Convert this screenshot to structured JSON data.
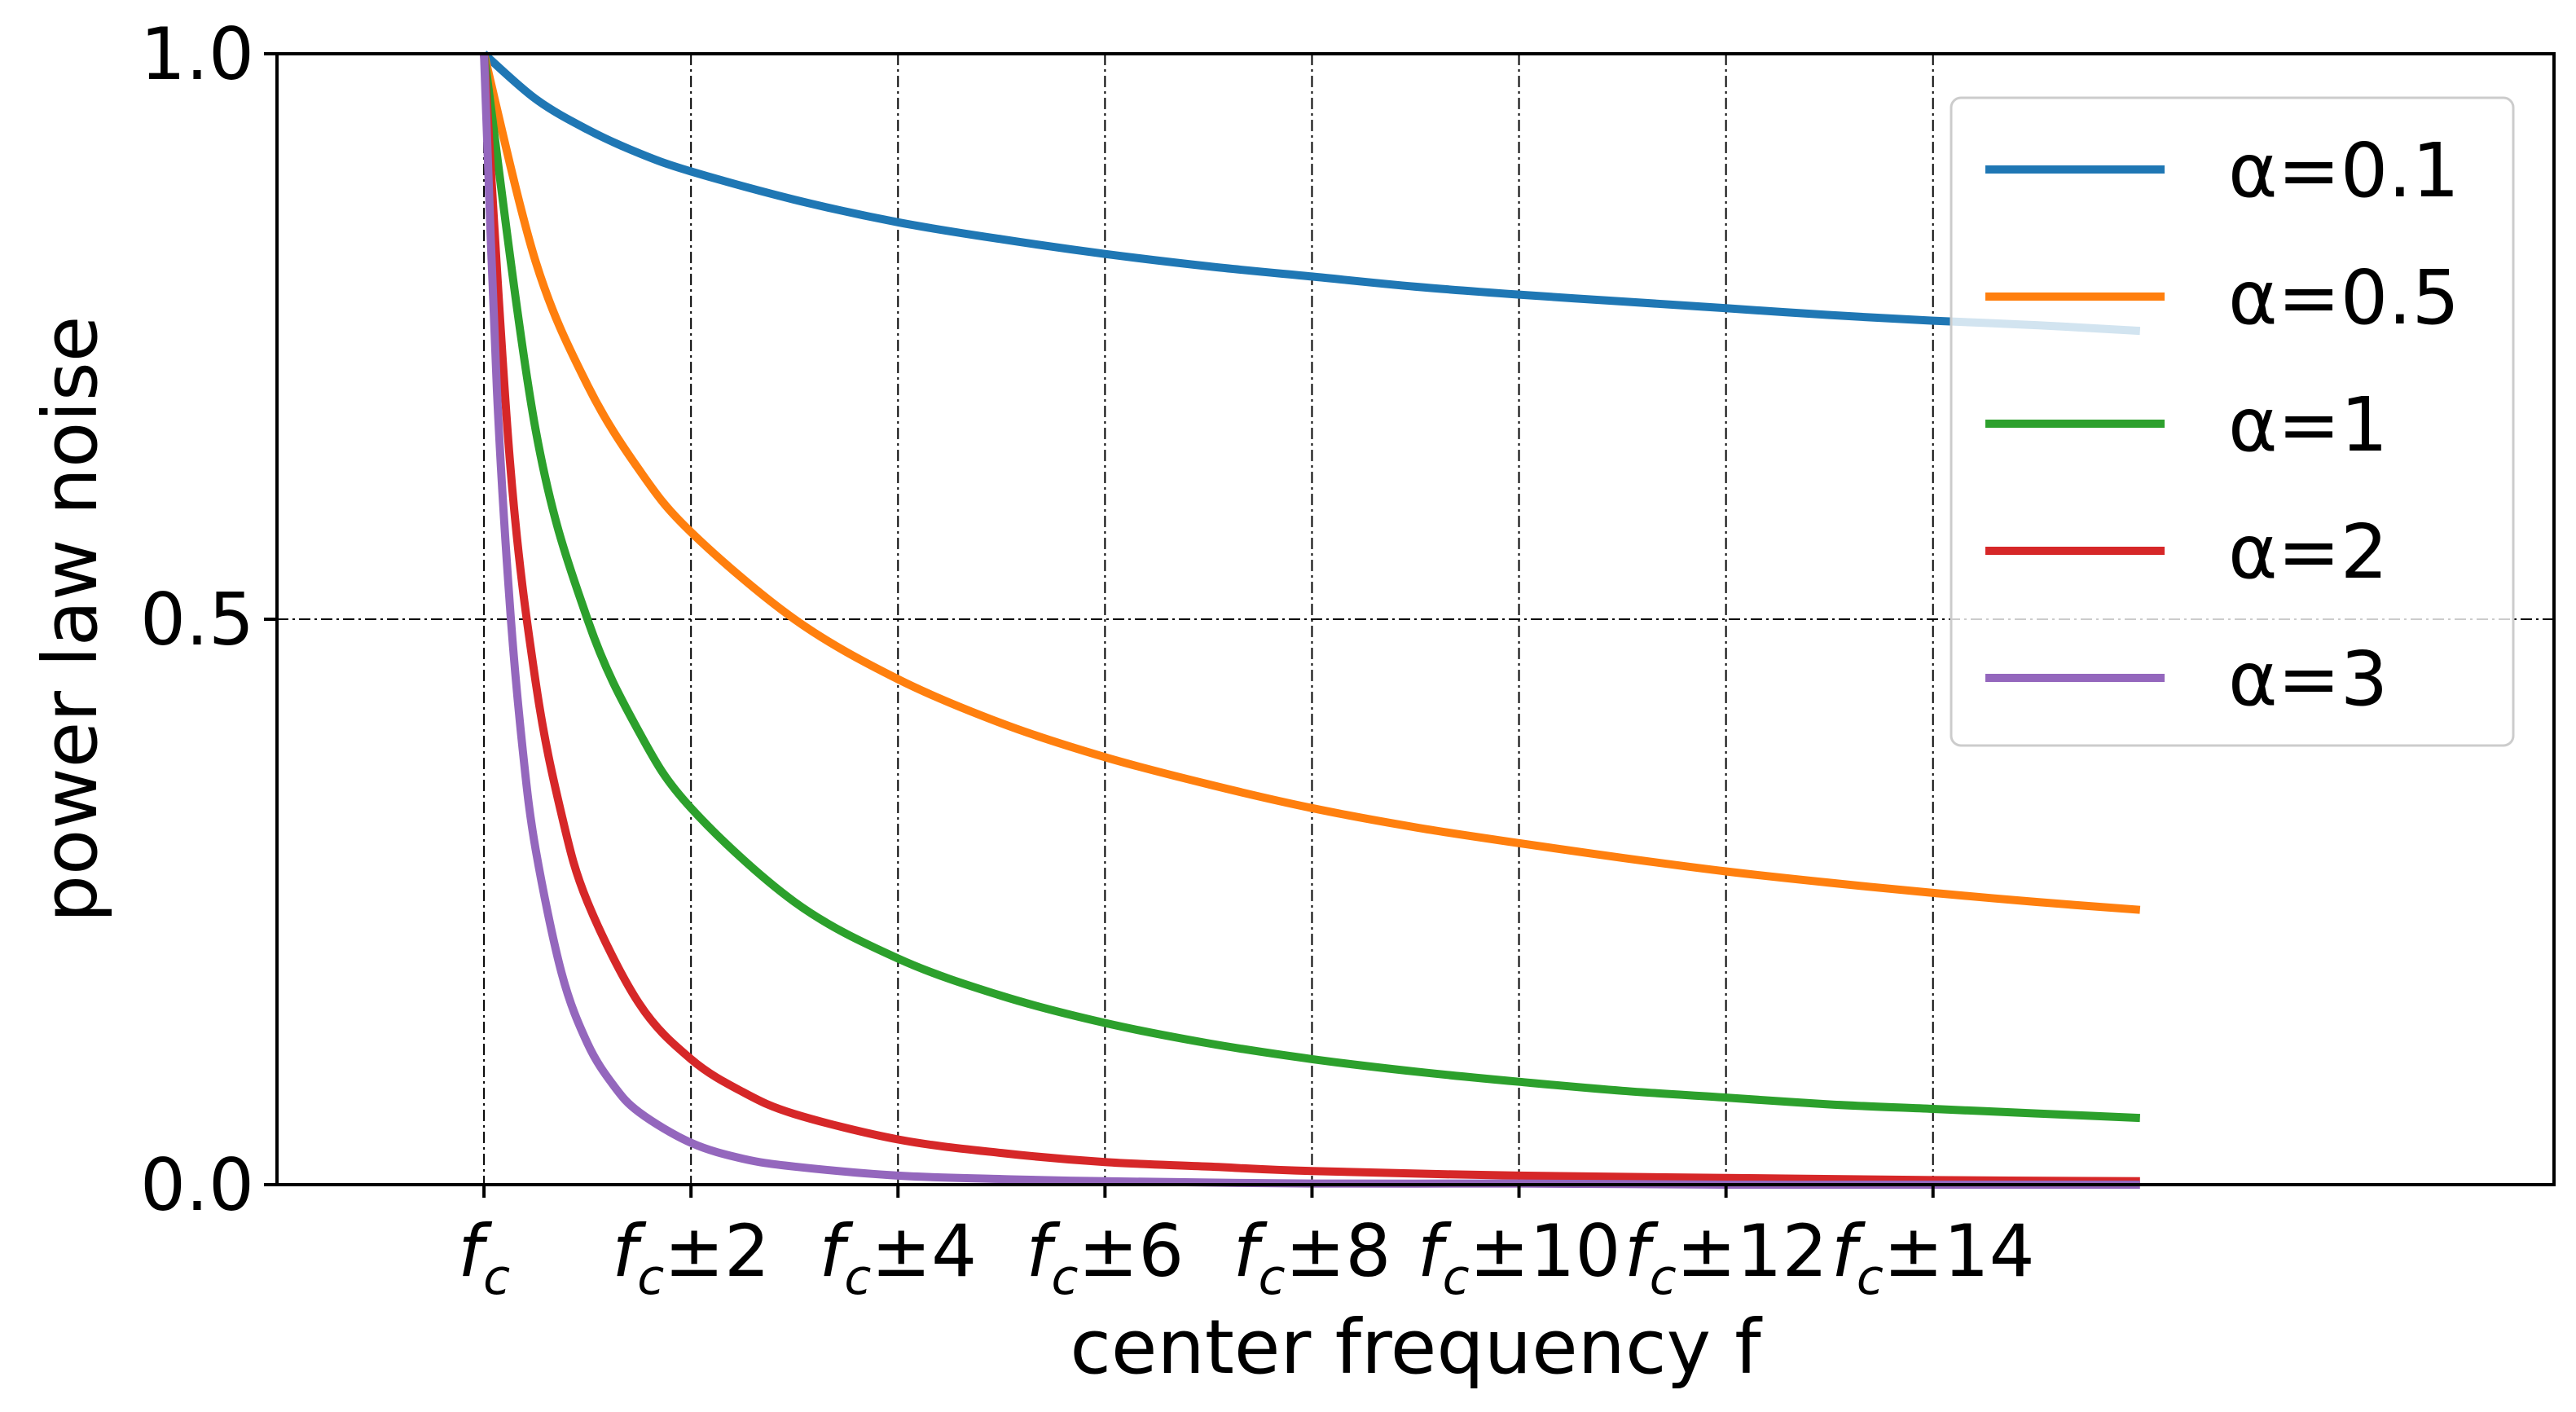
{
  "chart_data": {
    "type": "line",
    "xlabel": "center frequency f",
    "ylabel": "power law noise",
    "xlim": [
      -2,
      20
    ],
    "ylim": [
      0,
      1
    ],
    "x_ticks": [
      {
        "value": 0,
        "base": "f",
        "sub": "c",
        "suffix": ""
      },
      {
        "value": 2,
        "base": "f",
        "sub": "c",
        "suffix": "±2"
      },
      {
        "value": 4,
        "base": "f",
        "sub": "c",
        "suffix": "±4"
      },
      {
        "value": 6,
        "base": "f",
        "sub": "c",
        "suffix": "±6"
      },
      {
        "value": 8,
        "base": "f",
        "sub": "c",
        "suffix": "±8"
      },
      {
        "value": 10,
        "base": "f",
        "sub": "c",
        "suffix": "±10"
      },
      {
        "value": 12,
        "base": "f",
        "sub": "c",
        "suffix": "±12"
      },
      {
        "value": 14,
        "base": "f",
        "sub": "c",
        "suffix": "±14"
      }
    ],
    "y_ticks": [
      {
        "value": 0,
        "label": "0.0"
      },
      {
        "value": 0.5,
        "label": "0.5"
      },
      {
        "value": 1,
        "label": "1.0"
      }
    ],
    "grid": true,
    "legend_position": "upper-right",
    "series": [
      {
        "name": "α=0.1",
        "color": "#1f77b4",
        "x": [
          0,
          0.5,
          1,
          1.5,
          2,
          3,
          4,
          5,
          6,
          7,
          8,
          9,
          10,
          11,
          12,
          13,
          14,
          15,
          16
        ],
        "y": [
          1.0,
          0.96,
          0.933,
          0.912,
          0.896,
          0.871,
          0.851,
          0.836,
          0.823,
          0.812,
          0.803,
          0.794,
          0.787,
          0.781,
          0.775,
          0.769,
          0.764,
          0.76,
          0.755
        ]
      },
      {
        "name": "α=0.5",
        "color": "#ff7f0e",
        "x": [
          0,
          0.5,
          1,
          1.5,
          2,
          3,
          4,
          5,
          6,
          7,
          8,
          9,
          10,
          11,
          12,
          13,
          14,
          15,
          16
        ],
        "y": [
          1.0,
          0.816,
          0.707,
          0.632,
          0.577,
          0.5,
          0.447,
          0.408,
          0.378,
          0.354,
          0.333,
          0.316,
          0.302,
          0.289,
          0.277,
          0.267,
          0.258,
          0.25,
          0.243
        ]
      },
      {
        "name": "α=1",
        "color": "#2ca02c",
        "x": [
          0,
          0.5,
          1,
          1.5,
          2,
          3,
          4,
          5,
          6,
          7,
          8,
          9,
          10,
          11,
          12,
          13,
          14,
          15,
          16
        ],
        "y": [
          1.0,
          0.667,
          0.5,
          0.4,
          0.333,
          0.25,
          0.2,
          0.167,
          0.143,
          0.125,
          0.111,
          0.1,
          0.091,
          0.083,
          0.077,
          0.071,
          0.067,
          0.063,
          0.059
        ]
      },
      {
        "name": "α=2",
        "color": "#d62728",
        "x": [
          0,
          0.25,
          0.5,
          0.75,
          1,
          1.5,
          2,
          2.5,
          3,
          4,
          5,
          6,
          7,
          8,
          10,
          12,
          14,
          16
        ],
        "y": [
          1.0,
          0.64,
          0.444,
          0.327,
          0.25,
          0.16,
          0.111,
          0.082,
          0.0625,
          0.04,
          0.028,
          0.02,
          0.016,
          0.012,
          0.008,
          0.006,
          0.004,
          0.003
        ]
      },
      {
        "name": "α=3",
        "color": "#9467bd",
        "x": [
          0,
          0.125,
          0.25,
          0.375,
          0.5,
          0.75,
          1,
          1.25,
          1.5,
          2,
          2.5,
          3,
          4,
          5,
          6,
          8,
          10,
          12,
          14,
          16
        ],
        "y": [
          1.0,
          0.702,
          0.512,
          0.384,
          0.296,
          0.187,
          0.125,
          0.088,
          0.064,
          0.037,
          0.023,
          0.016,
          0.008,
          0.005,
          0.003,
          0.001,
          0.001,
          0.0,
          0.0,
          0.0
        ]
      }
    ]
  }
}
